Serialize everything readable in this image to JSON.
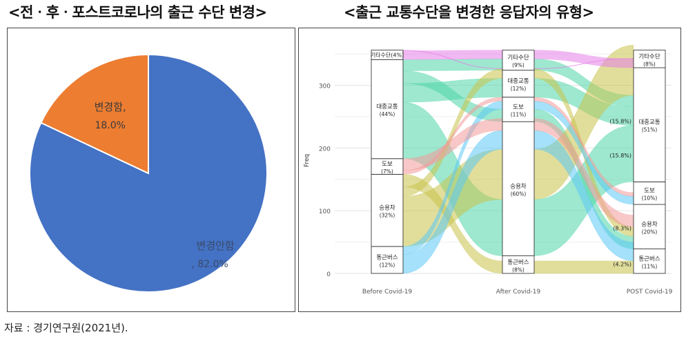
{
  "titles": {
    "left": "<전ㆍ후ㆍ포스트코로나의 출근 수단 변경>",
    "right": "<출근 교통수단을 변경한 응답자의 유형>"
  },
  "source": "자료 : 경기연구원(2021년).",
  "chart_data": [
    {
      "type": "pie",
      "slices": [
        {
          "label": "변경안함",
          "value": 82.0,
          "text": "변경안함",
          "text2": ", 82.0%",
          "color": "#4472C4"
        },
        {
          "label": "변경함",
          "value": 18.0,
          "text": "변경함,",
          "text2": "18.0%",
          "color": "#ED7D31"
        }
      ]
    },
    {
      "type": "alluvial",
      "ylabel": "Freq",
      "yticks": [
        0,
        100,
        200,
        300
      ],
      "ylim": [
        0,
        360
      ],
      "x": [
        "Before Covid-19",
        "After Covid-19",
        "POST Covid-19"
      ],
      "axes": [
        {
          "name": "Before Covid-19",
          "strata": [
            {
              "label": "통근버스",
              "pct": "(12%)",
              "value": 43
            },
            {
              "label": "승용차",
              "pct": "(32%)",
              "value": 115
            },
            {
              "label": "도보",
              "pct": "(7%)",
              "value": 25
            },
            {
              "label": "대중교통",
              "pct": "(44%)",
              "value": 158
            },
            {
              "label": "기타수단",
              "pct": "(4%)",
              "value": 15
            }
          ]
        },
        {
          "name": "After Covid-19",
          "strata": [
            {
              "label": "통근버스",
              "pct": "(8%)",
              "value": 28
            },
            {
              "label": "승용차",
              "pct": "(60%)",
              "value": 214
            },
            {
              "label": "도보",
              "pct": "(11%)",
              "value": 39
            },
            {
              "label": "대중교통",
              "pct": "(12%)",
              "value": 43
            },
            {
              "label": "기타수단",
              "pct": "(9%)",
              "value": 32
            }
          ]
        },
        {
          "name": "POST Covid-19",
          "strata": [
            {
              "label": "통근버스",
              "pct": "(11%)",
              "value": 39
            },
            {
              "label": "승용차",
              "pct": "(20%)",
              "value": 71
            },
            {
              "label": "도보",
              "pct": "(10%)",
              "value": 36
            },
            {
              "label": "대중교통",
              "pct": "(51%)",
              "value": 182
            },
            {
              "label": "기타수단",
              "pct": "(8%)",
              "value": 28
            }
          ]
        }
      ],
      "annotations": [
        {
          "text": "(15.8%)",
          "x": "POST Covid-19",
          "y": 243
        },
        {
          "text": "(15.8%)",
          "x": "POST Covid-19",
          "y": 188
        },
        {
          "text": "(8.3%)",
          "x": "POST Covid-19",
          "y": 72
        },
        {
          "text": "(4.2%)",
          "x": "POST Covid-19",
          "y": 15
        }
      ],
      "flow_colors": [
        "#4fd6a8",
        "#c9c24a",
        "#5bc8f5",
        "#f39b9b",
        "#e67fe8"
      ],
      "flows": [
        {
          "from": "대중교통",
          "to": "승용차",
          "post": "대중교통",
          "color": "#4fd6a8",
          "value": 90
        },
        {
          "from": "대중교통",
          "to": "대중교통",
          "post": "대중교통",
          "color": "#4fd6a8",
          "value": 30
        },
        {
          "from": "대중교통",
          "to": "도보",
          "post": "승용차",
          "color": "#4fd6a8",
          "value": 20
        },
        {
          "from": "대중교통",
          "to": "기타수단",
          "post": "대중교통",
          "color": "#4fd6a8",
          "value": 18
        },
        {
          "from": "승용차",
          "to": "승용차",
          "post": "대중교통",
          "color": "#c9c24a",
          "value": 80
        },
        {
          "from": "승용차",
          "to": "대중교통",
          "post": "승용차",
          "color": "#c9c24a",
          "value": 15
        },
        {
          "from": "승용차",
          "to": "통근버스",
          "post": "통근버스",
          "color": "#c9c24a",
          "value": 20
        },
        {
          "from": "통근버스",
          "to": "승용차",
          "post": "통근버스",
          "color": "#5bc8f5",
          "value": 30
        },
        {
          "from": "통근버스",
          "to": "도보",
          "post": "도보",
          "color": "#5bc8f5",
          "value": 13
        },
        {
          "from": "도보",
          "to": "도보",
          "post": "도보",
          "color": "#f39b9b",
          "value": 6
        },
        {
          "from": "도보",
          "to": "승용차",
          "post": "승용차",
          "color": "#f39b9b",
          "value": 19
        },
        {
          "from": "기타수단",
          "to": "기타수단",
          "post": "기타수단",
          "color": "#e67fe8",
          "value": 14
        },
        {
          "from": "기타수단",
          "to": "대중교통",
          "post": "기타수단",
          "color": "#e67fe8",
          "value": 1
        }
      ]
    }
  ]
}
